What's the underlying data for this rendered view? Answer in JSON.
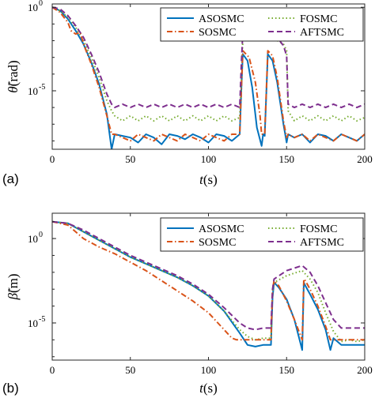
{
  "chart_data": [
    {
      "type": "line",
      "panel_label": "(a)",
      "xlabel": "t(s)",
      "xlabel_main": "t",
      "xlabel_unit": "(s)",
      "ylabel": "θ̃(rad)",
      "ylabel_main": "θ̃",
      "ylabel_unit": "(rad)",
      "yscale": "log",
      "xlim": [
        0,
        200
      ],
      "ylim_log10": [
        -8.5,
        0.2
      ],
      "x_ticks": [
        "0",
        "50",
        "100",
        "150",
        "200"
      ],
      "y_ticks": [
        {
          "base": "10",
          "exp": "0"
        },
        {
          "base": "10",
          "exp": "-5"
        }
      ],
      "legend_position": "top-right",
      "series": [
        {
          "name": "ASOSMC",
          "color": "#0072BD",
          "dash": "solid",
          "x": [
            0,
            5,
            10,
            15,
            20,
            25,
            30,
            35,
            38,
            40,
            45,
            50,
            55,
            60,
            65,
            70,
            75,
            80,
            85,
            90,
            95,
            100,
            105,
            110,
            115,
            120,
            121,
            122,
            125,
            128,
            131,
            134,
            135,
            136,
            138,
            141,
            144,
            148,
            150,
            151,
            155,
            160,
            165,
            170,
            175,
            180,
            185,
            190,
            195,
            200
          ],
          "log10y": [
            0,
            -0.2,
            -0.7,
            -1.4,
            -2.2,
            -3.3,
            -4.6,
            -6.4,
            -8.5,
            -7.6,
            -7.7,
            -7.8,
            -8.1,
            -7.6,
            -7.8,
            -8.2,
            -7.6,
            -7.7,
            -7.9,
            -7.6,
            -7.8,
            -8.1,
            -7.6,
            -7.7,
            -8.0,
            -7.6,
            -5,
            -2.8,
            -3.2,
            -4.8,
            -7.2,
            -8.3,
            -7.6,
            -7.7,
            -2.8,
            -3.2,
            -4.5,
            -7.0,
            -8.1,
            -7.6,
            -7.8,
            -7.6,
            -8.1,
            -7.6,
            -7.7,
            -8.0,
            -7.6,
            -7.8,
            -8.0,
            -7.6
          ]
        },
        {
          "name": "FOSMC",
          "color": "#77AC30",
          "dash": "dot",
          "x": [
            0,
            5,
            10,
            15,
            20,
            25,
            30,
            35,
            38,
            40,
            45,
            50,
            55,
            60,
            65,
            70,
            75,
            80,
            85,
            90,
            95,
            100,
            105,
            110,
            115,
            120,
            121,
            122,
            125,
            130,
            135,
            138,
            141,
            144,
            148,
            150,
            151,
            155,
            160,
            165,
            170,
            175,
            180,
            185,
            190,
            195,
            200
          ],
          "log10y": [
            0,
            -0.2,
            -0.6,
            -1.2,
            -2.0,
            -3.0,
            -4.2,
            -5.6,
            -6.2,
            -6.5,
            -6.8,
            -6.5,
            -6.8,
            -6.5,
            -6.8,
            -6.5,
            -6.8,
            -6.5,
            -6.8,
            -6.5,
            -6.8,
            -6.5,
            -6.8,
            -6.5,
            -6.8,
            -6.6,
            -4.5,
            -2.0,
            -1.9,
            -1.9,
            -2.0,
            -2.0,
            -2.0,
            -2.0,
            -2.2,
            -2.6,
            -6.2,
            -6.8,
            -6.5,
            -6.8,
            -6.5,
            -6.8,
            -6.5,
            -6.8,
            -6.5,
            -6.8,
            -6.6
          ]
        },
        {
          "name": "SOSMC",
          "color": "#D95319",
          "dash": "dashdot",
          "x": [
            0,
            5,
            10,
            12,
            15,
            18,
            20,
            25,
            30,
            35,
            38,
            40,
            45,
            50,
            55,
            60,
            65,
            70,
            75,
            80,
            85,
            90,
            95,
            100,
            105,
            110,
            115,
            120,
            121,
            122,
            126,
            130,
            133,
            134,
            135,
            136,
            138,
            141,
            144,
            148,
            150,
            151,
            155,
            160,
            165,
            170,
            175,
            180,
            185,
            190,
            195,
            200
          ],
          "log10y": [
            0,
            -0.3,
            -0.9,
            -1.4,
            -1.6,
            -1.5,
            -2.2,
            -3.4,
            -4.8,
            -6.5,
            -7.6,
            -7.6,
            -7.8,
            -8.0,
            -7.6,
            -7.8,
            -8.0,
            -7.6,
            -7.8,
            -8.0,
            -7.6,
            -7.8,
            -8.0,
            -7.6,
            -7.8,
            -8.0,
            -7.6,
            -7.6,
            -5,
            -2.6,
            -3.0,
            -4.5,
            -6.5,
            -7.6,
            -7.6,
            -7.6,
            -2.6,
            -2.9,
            -4.2,
            -6.8,
            -7.8,
            -7.6,
            -7.8,
            -7.6,
            -8.0,
            -7.6,
            -7.8,
            -8.0,
            -7.6,
            -7.8,
            -8.0,
            -7.6
          ]
        },
        {
          "name": "AFTSMC",
          "color": "#7E2F8E",
          "dash": "dash",
          "x": [
            0,
            5,
            10,
            15,
            20,
            25,
            30,
            35,
            38,
            40,
            45,
            50,
            55,
            60,
            65,
            70,
            75,
            80,
            85,
            90,
            95,
            100,
            105,
            110,
            115,
            120,
            121,
            122,
            125,
            130,
            135,
            138,
            141,
            144,
            148,
            150,
            151,
            155,
            160,
            165,
            170,
            175,
            180,
            185,
            190,
            195,
            200
          ],
          "log10y": [
            0,
            -0.1,
            -0.5,
            -1.1,
            -1.8,
            -2.8,
            -3.9,
            -5.2,
            -5.8,
            -6.0,
            -5.8,
            -6.0,
            -5.8,
            -6.0,
            -5.8,
            -6.0,
            -5.8,
            -6.0,
            -5.8,
            -6.0,
            -5.8,
            -6.0,
            -5.8,
            -6.0,
            -5.8,
            -6.0,
            -3.5,
            -1.5,
            -1.4,
            -1.4,
            -1.4,
            -1.5,
            -1.6,
            -1.8,
            -2.3,
            -2.9,
            -5.8,
            -6.0,
            -5.8,
            -6.0,
            -5.8,
            -6.0,
            -5.8,
            -6.0,
            -5.8,
            -6.0,
            -5.8
          ]
        }
      ]
    },
    {
      "type": "line",
      "panel_label": "(b)",
      "xlabel": "t(s)",
      "xlabel_main": "t",
      "xlabel_unit": "(s)",
      "ylabel": "β̃(m)",
      "ylabel_main": "β̃",
      "ylabel_unit": "(m)",
      "yscale": "log",
      "xlim": [
        0,
        200
      ],
      "ylim_log10": [
        -7.2,
        1.5
      ],
      "x_ticks": [
        "0",
        "50",
        "100",
        "150",
        "200"
      ],
      "y_ticks": [
        {
          "base": "10",
          "exp": "0"
        },
        {
          "base": "10",
          "exp": "-5"
        }
      ],
      "legend_position": "top-right",
      "series": [
        {
          "name": "ASOSMC",
          "color": "#0072BD",
          "dash": "solid",
          "x": [
            0,
            10,
            20,
            30,
            40,
            50,
            60,
            70,
            80,
            90,
            100,
            110,
            120,
            125,
            130,
            135,
            140,
            141,
            142,
            145,
            150,
            155,
            160,
            161,
            162,
            165,
            170,
            175,
            178,
            180,
            185,
            190,
            195,
            200
          ],
          "log10y": [
            1.0,
            0.9,
            0.4,
            -0.1,
            -0.6,
            -1.1,
            -1.5,
            -1.9,
            -2.3,
            -2.8,
            -3.4,
            -4.3,
            -5.6,
            -6.3,
            -6.4,
            -6.3,
            -6.3,
            -3.5,
            -2.6,
            -2.9,
            -3.6,
            -4.8,
            -6.6,
            -2.6,
            -2.8,
            -3.3,
            -4.2,
            -5.4,
            -6.6,
            -5.9,
            -6.3,
            -6.3,
            -6.3,
            -6.3
          ]
        },
        {
          "name": "FOSMC",
          "color": "#77AC30",
          "dash": "dot",
          "x": [
            0,
            10,
            20,
            30,
            40,
            50,
            60,
            70,
            80,
            90,
            100,
            110,
            120,
            125,
            130,
            135,
            140,
            141,
            142,
            150,
            160,
            165,
            170,
            175,
            180,
            185,
            190,
            195,
            200
          ],
          "log10y": [
            1.0,
            0.9,
            0.4,
            -0.1,
            -0.6,
            -1.1,
            -1.5,
            -1.9,
            -2.3,
            -2.8,
            -3.4,
            -4.3,
            -5.4,
            -5.8,
            -6.0,
            -5.9,
            -5.9,
            -3.2,
            -2.6,
            -2.2,
            -1.9,
            -2.4,
            -3.2,
            -4.4,
            -5.5,
            -6.1,
            -6.0,
            -6.1,
            -6.0
          ]
        },
        {
          "name": "SOSMC",
          "color": "#D95319",
          "dash": "dashdot",
          "x": [
            0,
            10,
            15,
            20,
            30,
            40,
            50,
            60,
            70,
            80,
            90,
            100,
            110,
            115,
            118,
            120,
            125,
            130,
            135,
            140,
            141,
            142,
            145,
            150,
            155,
            160,
            161,
            162,
            165,
            170,
            175,
            178,
            180,
            185,
            190,
            195,
            200
          ],
          "log10y": [
            1.0,
            0.8,
            0.4,
            0.0,
            -0.5,
            -0.9,
            -1.4,
            -1.9,
            -2.5,
            -3.1,
            -3.7,
            -4.4,
            -5.4,
            -5.9,
            -6.0,
            -6.0,
            -6.0,
            -6.0,
            -6.0,
            -6.0,
            -3.0,
            -2.5,
            -2.8,
            -3.7,
            -4.8,
            -6.0,
            -2.4,
            -2.5,
            -3.0,
            -4.0,
            -5.2,
            -6.0,
            -6.0,
            -6.0,
            -6.0,
            -6.0,
            -6.0
          ]
        },
        {
          "name": "AFTSMC",
          "color": "#7E2F8E",
          "dash": "dash",
          "x": [
            0,
            10,
            20,
            30,
            40,
            50,
            60,
            70,
            80,
            90,
            100,
            110,
            120,
            125,
            130,
            135,
            140,
            141,
            142,
            150,
            160,
            165,
            170,
            175,
            180,
            185,
            190,
            195,
            200
          ],
          "log10y": [
            1.0,
            0.9,
            0.5,
            0.0,
            -0.5,
            -1.0,
            -1.4,
            -1.8,
            -2.2,
            -2.7,
            -3.3,
            -4.1,
            -5.0,
            -5.3,
            -5.4,
            -5.3,
            -5.3,
            -3.0,
            -2.4,
            -1.9,
            -1.6,
            -2.0,
            -2.8,
            -3.8,
            -4.8,
            -5.3,
            -5.3,
            -5.3,
            -5.3
          ]
        }
      ]
    }
  ]
}
